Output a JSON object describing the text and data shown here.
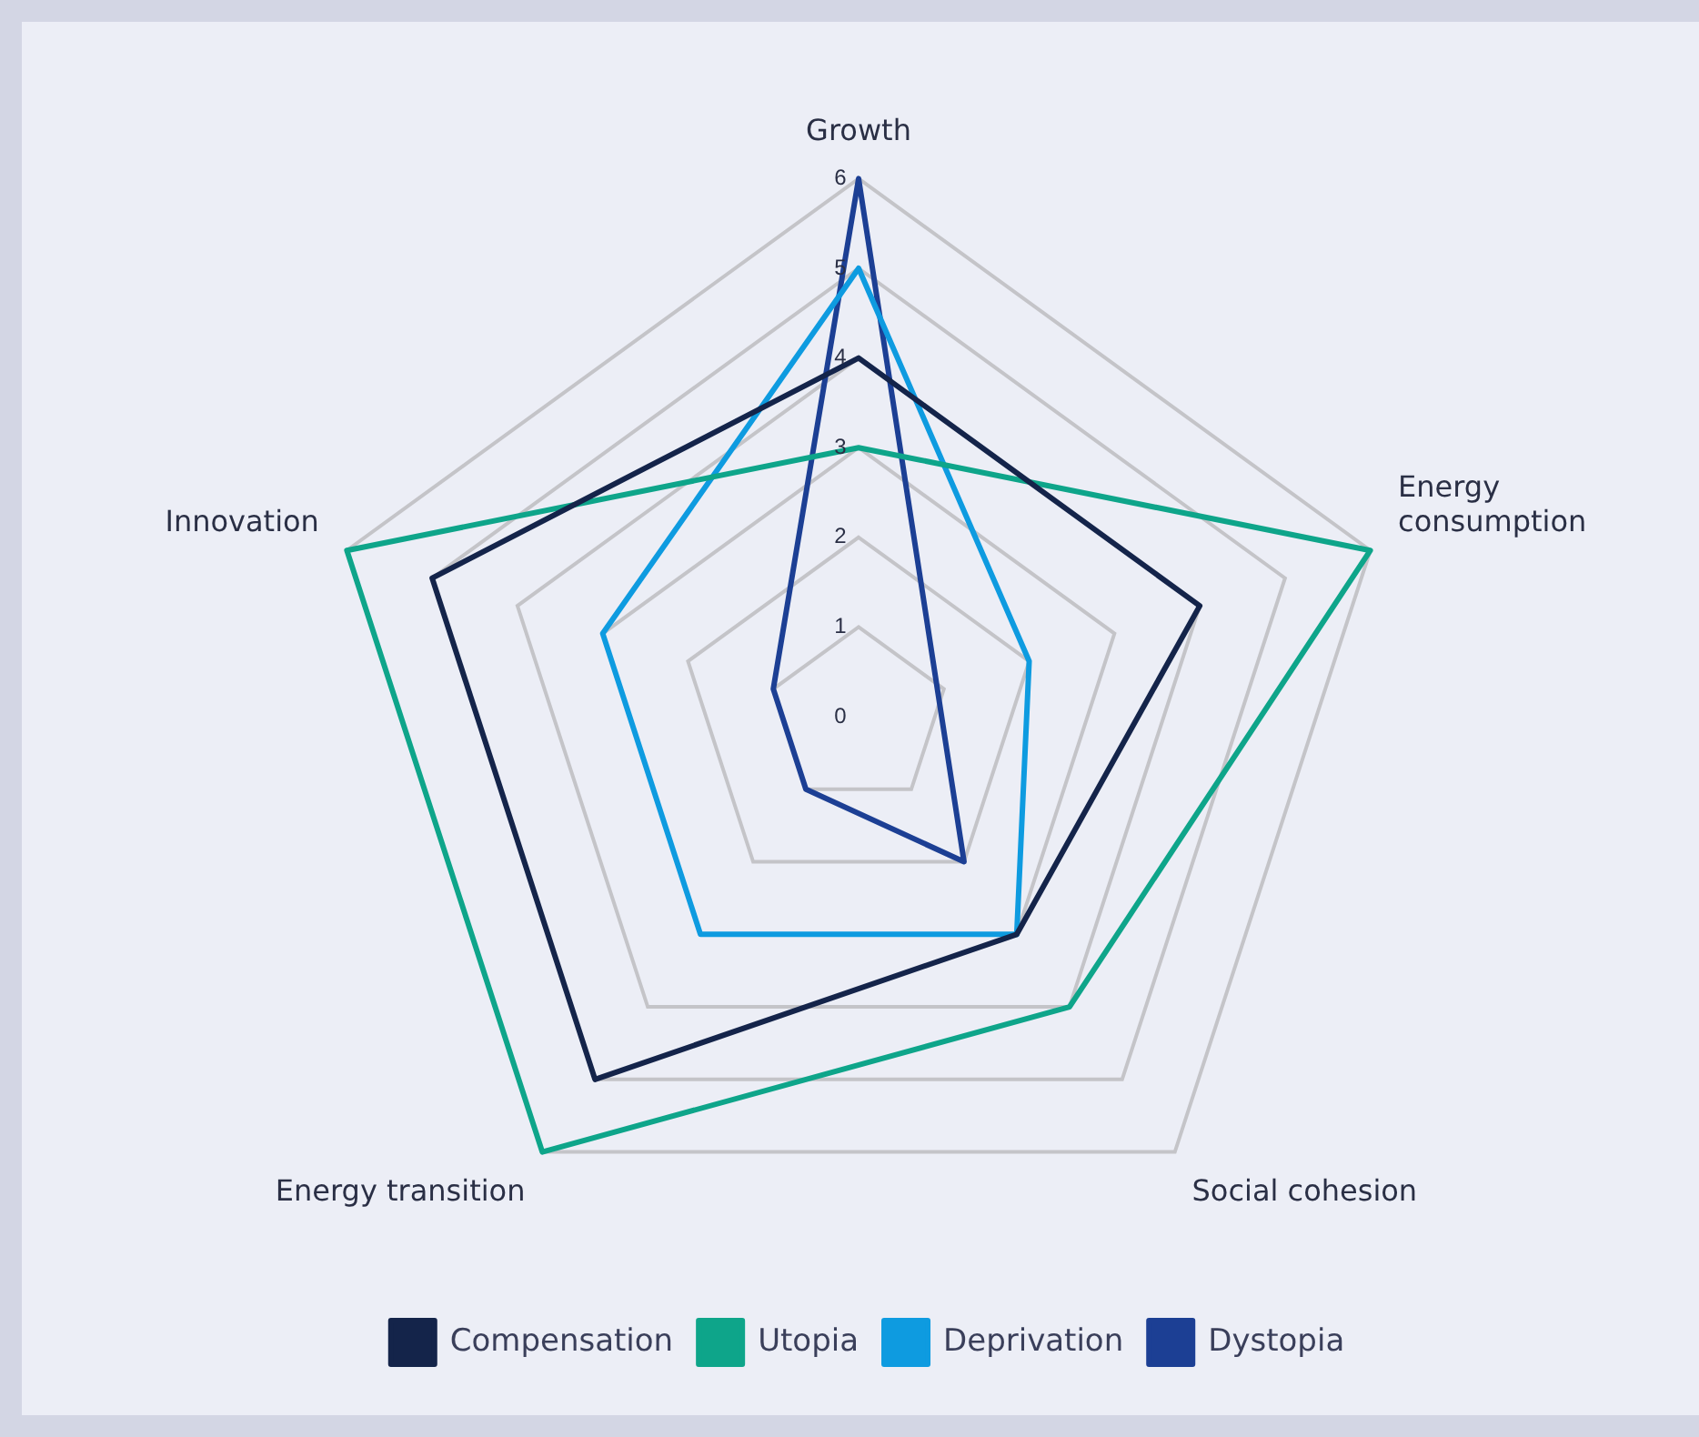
{
  "chart_data": {
    "type": "radar",
    "categories": [
      "Growth",
      "Energy consumption",
      "Social cohesion",
      "Energy transition",
      "Innovation"
    ],
    "series": [
      {
        "name": "Compensation",
        "color": "#14244a",
        "values": [
          4,
          4,
          3,
          5,
          5
        ]
      },
      {
        "name": "Utopia",
        "color": "#0ea58a",
        "values": [
          3,
          6,
          4,
          6,
          6
        ]
      },
      {
        "name": "Deprivation",
        "color": "#0e9be0",
        "values": [
          5,
          2,
          3,
          3,
          3
        ]
      },
      {
        "name": "Dystopia",
        "color": "#1c3f94",
        "values": [
          6,
          null,
          2,
          1,
          1
        ]
      }
    ],
    "ylim": [
      0,
      6
    ],
    "yticks": [
      0,
      1,
      2,
      3,
      4,
      5,
      6
    ],
    "grid": true,
    "legend": "bottom",
    "marker": "none",
    "line_style": "solid"
  }
}
